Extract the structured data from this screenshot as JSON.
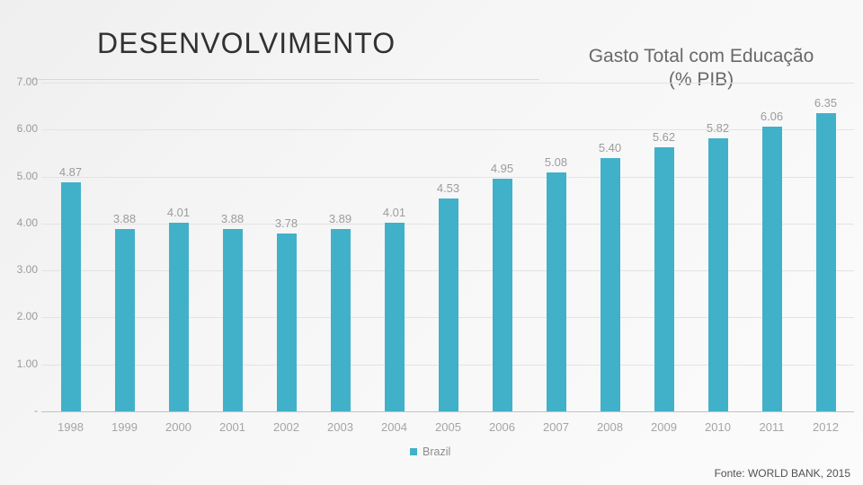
{
  "slide": {
    "title": "DESENVOLVIMENTO",
    "source_label": "Fonte: WORLD BANK, 2015"
  },
  "chart_data": {
    "type": "bar",
    "title": "Gasto Total com Educação (% PIB)",
    "title_line1": "Gasto Total com Educação",
    "title_line2": "(% PIB)",
    "categories": [
      "1998",
      "1999",
      "2000",
      "2001",
      "2002",
      "2003",
      "2004",
      "2005",
      "2006",
      "2007",
      "2008",
      "2009",
      "2010",
      "2011",
      "2012"
    ],
    "series": [
      {
        "name": "Brazil",
        "values": [
          4.87,
          3.88,
          4.01,
          3.88,
          3.78,
          3.89,
          4.01,
          4.53,
          4.95,
          5.08,
          5.4,
          5.62,
          5.82,
          6.06,
          6.35
        ]
      }
    ],
    "value_labels": [
      "4.87",
      "3.88",
      "4.01",
      "3.88",
      "3.78",
      "3.89",
      "4.01",
      "4.53",
      "4.95",
      "5.08",
      "5.40",
      "5.62",
      "5.82",
      "6.06",
      "6.35"
    ],
    "y_ticks": [
      "7.00",
      "6.00",
      "5.00",
      "4.00",
      "3.00",
      "2.00",
      "1.00",
      "-"
    ],
    "ylim": [
      0,
      7
    ],
    "xlabel": "",
    "ylabel": "",
    "grid": true,
    "bar_color": "#41b1c9",
    "grid_color": "#e3e3e3",
    "legend": {
      "label": "Brazil",
      "position": "bottom",
      "swatch_color": "#41b1c9"
    }
  }
}
